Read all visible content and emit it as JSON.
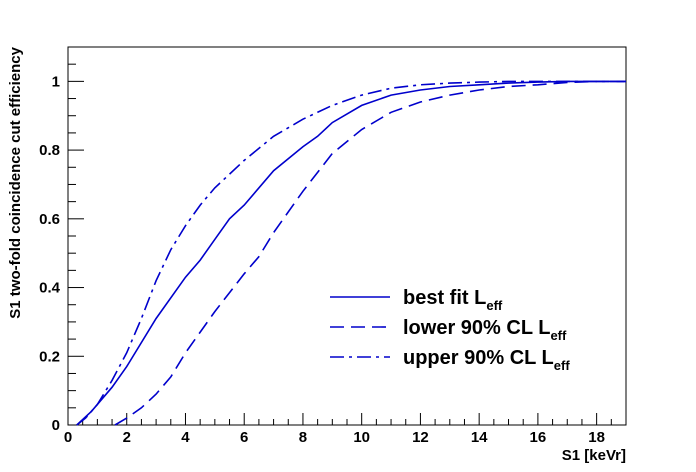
{
  "chart_data": {
    "type": "line",
    "title": "",
    "xlabel": "S1 [keVr]",
    "ylabel": "S1 two-fold coincidence cut efficiency",
    "xlim": [
      0,
      19
    ],
    "ylim": [
      0,
      1.1
    ],
    "x_ticks": [
      0,
      2,
      4,
      6,
      8,
      10,
      12,
      14,
      16,
      18
    ],
    "x_tick_labels": [
      "0",
      "2",
      "4",
      "6",
      "8",
      "10",
      "12",
      "14",
      "16",
      "18"
    ],
    "y_ticks": [
      0,
      0.2,
      0.4,
      0.6,
      0.8,
      1
    ],
    "y_tick_labels": [
      "0",
      "0.2",
      "0.4",
      "0.6",
      "0.8",
      "1"
    ],
    "grid": false,
    "legend_position": "lower-right",
    "series": [
      {
        "name": "best fit L",
        "name_sub": "eff",
        "color": "#0000cc",
        "dash": "solid",
        "points": [
          [
            0.3,
            0.0
          ],
          [
            0.8,
            0.04
          ],
          [
            1.5,
            0.11
          ],
          [
            2.0,
            0.17
          ],
          [
            3.0,
            0.31
          ],
          [
            4.0,
            0.43
          ],
          [
            4.5,
            0.48
          ],
          [
            5.0,
            0.54
          ],
          [
            5.5,
            0.6
          ],
          [
            6.0,
            0.64
          ],
          [
            7.0,
            0.74
          ],
          [
            8.0,
            0.81
          ],
          [
            8.5,
            0.84
          ],
          [
            9.0,
            0.88
          ],
          [
            10.0,
            0.93
          ],
          [
            11.0,
            0.96
          ],
          [
            12.0,
            0.975
          ],
          [
            13.0,
            0.985
          ],
          [
            14.0,
            0.99
          ],
          [
            15.0,
            0.995
          ],
          [
            16.0,
            0.998
          ],
          [
            17.0,
            1.0
          ],
          [
            19.0,
            1.0
          ]
        ]
      },
      {
        "name": "lower 90% CL L",
        "name_sub": "eff",
        "color": "#0000cc",
        "dash": "lower",
        "points": [
          [
            1.6,
            0.0
          ],
          [
            2.0,
            0.02
          ],
          [
            2.5,
            0.05
          ],
          [
            3.0,
            0.09
          ],
          [
            3.5,
            0.14
          ],
          [
            4.0,
            0.21
          ],
          [
            5.0,
            0.33
          ],
          [
            6.0,
            0.44
          ],
          [
            6.5,
            0.49
          ],
          [
            7.0,
            0.56
          ],
          [
            7.5,
            0.62
          ],
          [
            8.0,
            0.68
          ],
          [
            9.0,
            0.79
          ],
          [
            10.0,
            0.86
          ],
          [
            11.0,
            0.91
          ],
          [
            12.0,
            0.94
          ],
          [
            13.0,
            0.96
          ],
          [
            14.0,
            0.975
          ],
          [
            15.0,
            0.985
          ],
          [
            16.0,
            0.99
          ],
          [
            17.0,
            0.997
          ],
          [
            18.0,
            1.0
          ],
          [
            19.0,
            1.0
          ]
        ]
      },
      {
        "name": "upper 90% CL L",
        "name_sub": "eff",
        "color": "#0000cc",
        "dash": "upper",
        "points": [
          [
            0.3,
            0.0
          ],
          [
            0.6,
            0.02
          ],
          [
            1.0,
            0.06
          ],
          [
            1.5,
            0.13
          ],
          [
            2.0,
            0.21
          ],
          [
            2.5,
            0.31
          ],
          [
            3.0,
            0.42
          ],
          [
            3.5,
            0.51
          ],
          [
            4.0,
            0.58
          ],
          [
            4.5,
            0.64
          ],
          [
            5.0,
            0.69
          ],
          [
            6.0,
            0.77
          ],
          [
            7.0,
            0.84
          ],
          [
            8.0,
            0.89
          ],
          [
            9.0,
            0.93
          ],
          [
            10.0,
            0.96
          ],
          [
            11.0,
            0.98
          ],
          [
            12.0,
            0.99
          ],
          [
            13.0,
            0.995
          ],
          [
            14.0,
            0.998
          ],
          [
            15.0,
            1.0
          ],
          [
            19.0,
            1.0
          ]
        ]
      }
    ]
  }
}
